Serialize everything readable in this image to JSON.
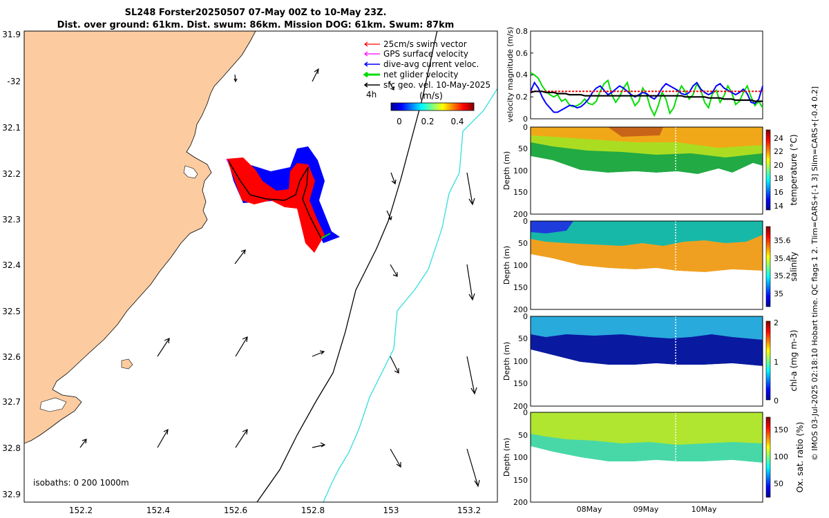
{
  "title": {
    "line1": "SL248 Forster20250507 07-May 00Z to 10-May 23Z.",
    "line2": "Dist. over ground: 61km. Dist. swum: 86km. Mission DOG: 61km. Swum: 87km"
  },
  "map": {
    "land_color": "#FCCCA0",
    "lon_ticks": [
      "152.2",
      "152.4",
      "152.6",
      "152.8",
      "153",
      "153.2"
    ],
    "lat_ticks": [
      "31.9",
      "-32",
      "32.1",
      "32.2",
      "32.3",
      "32.4",
      "32.5",
      "32.6",
      "32.7",
      "32.8",
      "32.9"
    ],
    "legend": [
      {
        "label": "25cm/s swim vector",
        "color": "#FF0000"
      },
      {
        "label": "GPS surface velocity",
        "color": "#FF00FF"
      },
      {
        "label": "dive-avg current veloc.",
        "color": "#0000FF"
      },
      {
        "label": "net glider velocity",
        "color": "#00DD00"
      },
      {
        "label": "sfc geo. vel. 10-May-2025",
        "color": "#000000"
      }
    ],
    "legend_extra": "4h",
    "colorbar": {
      "unit": "(m/s)",
      "ticks": [
        "0",
        "0.2",
        "0.4"
      ]
    },
    "isobaths_label": "isobaths: 0   200  1000m",
    "isobath_200_color": "#000000",
    "isobath_1000_color": "#33DDDD"
  },
  "chart_data": [
    {
      "type": "line",
      "title": "",
      "ylabel": "velocity magnitude (m/s)",
      "ylim": [
        0,
        0.8
      ],
      "yticks": [
        "0",
        "0.2",
        "0.4",
        "0.6",
        "0.8"
      ],
      "series": [
        {
          "name": "net glider velocity",
          "color": "#00DD00",
          "values": [
            0.42,
            0.4,
            0.37,
            0.3,
            0.25,
            0.22,
            0.2,
            0.22,
            0.16,
            0.18,
            0.13,
            0.11,
            0.12,
            0.14,
            0.18,
            0.14,
            0.13,
            0.16,
            0.25,
            0.32,
            0.35,
            0.22,
            0.15,
            0.2,
            0.28,
            0.33,
            0.2,
            0.12,
            0.16,
            0.28,
            0.22,
            0.1,
            0.03,
            0.12,
            0.24,
            0.18,
            0.05,
            0.1,
            0.22,
            0.3,
            0.25,
            0.18,
            0.22,
            0.32,
            0.26,
            0.15,
            0.1,
            0.23,
            0.26,
            0.15,
            0.21,
            0.3,
            0.24,
            0.13,
            0.16,
            0.24,
            0.3,
            0.2,
            0.12,
            0.16,
            0.1
          ]
        },
        {
          "name": "dive-avg current veloc.",
          "color": "#0000FF",
          "values": [
            0.25,
            0.33,
            0.28,
            0.2,
            0.14,
            0.1,
            0.06,
            0.06,
            0.08,
            0.1,
            0.12,
            0.12,
            0.1,
            0.11,
            0.14,
            0.18,
            0.24,
            0.28,
            0.3,
            0.26,
            0.22,
            0.24,
            0.27,
            0.3,
            0.28,
            0.25,
            0.22,
            0.2,
            0.22,
            0.24,
            0.23,
            0.2,
            0.18,
            0.22,
            0.28,
            0.32,
            0.3,
            0.28,
            0.26,
            0.23,
            0.22,
            0.24,
            0.3,
            0.33,
            0.27,
            0.24,
            0.22,
            0.24,
            0.3,
            0.32,
            0.28,
            0.26,
            0.24,
            0.22,
            0.24,
            0.27,
            0.23,
            0.15,
            0.14,
            0.18,
            0.3
          ]
        },
        {
          "name": "25cm/s swim vector",
          "color": "#FF0000",
          "dashed": true,
          "values": [
            0.25,
            0.25,
            0.25,
            0.25,
            0.25,
            0.25,
            0.25,
            0.25,
            0.25,
            0.25,
            0.25,
            0.25,
            0.25,
            0.25,
            0.25,
            0.25,
            0.25,
            0.25,
            0.25,
            0.25,
            0.25,
            0.25,
            0.25,
            0.25,
            0.25,
            0.25,
            0.25,
            0.25,
            0.25,
            0.25,
            0.25,
            0.25,
            0.25,
            0.25,
            0.25,
            0.25,
            0.25,
            0.25,
            0.25,
            0.25,
            0.25,
            0.25,
            0.25,
            0.25,
            0.25,
            0.25,
            0.25,
            0.25,
            0.25,
            0.25,
            0.25,
            0.25,
            0.25,
            0.25,
            0.25,
            0.25,
            0.25,
            0.25,
            0.25,
            0.25,
            0.25
          ]
        },
        {
          "name": "sfc geo. vel.",
          "color": "#000000",
          "values": [
            0.24,
            0.25,
            0.25,
            0.25,
            0.24,
            0.24,
            0.24,
            0.23,
            0.23,
            0.23,
            0.22,
            0.22,
            0.22,
            0.22,
            0.21,
            0.21,
            0.21,
            0.21,
            0.21,
            0.21,
            0.21,
            0.21,
            0.21,
            0.21,
            0.21,
            0.21,
            0.21,
            0.21,
            0.21,
            0.21,
            0.21,
            0.21,
            0.21,
            0.21,
            0.21,
            0.21,
            0.21,
            0.21,
            0.21,
            0.21,
            0.2,
            0.2,
            0.2,
            0.2,
            0.2,
            0.2,
            0.19,
            0.19,
            0.19,
            0.19,
            0.18,
            0.18,
            0.18,
            0.17,
            0.17,
            0.17,
            0.17,
            0.17,
            0.16,
            0.16,
            0.16
          ]
        }
      ]
    },
    {
      "type": "heatmap",
      "variable": "temperature",
      "ylabel": "Depth (m)",
      "clabel": "temperature (°C)",
      "ylim": [
        0,
        200
      ],
      "yticks": [
        "0",
        "50",
        "100",
        "150",
        "200"
      ],
      "crange": [
        13,
        25
      ],
      "cticks": [
        "24",
        "22",
        "20",
        "18",
        "16",
        "14"
      ]
    },
    {
      "type": "heatmap",
      "variable": "salinity",
      "ylabel": "Depth (m)",
      "clabel": "salinity",
      "ylim": [
        0,
        200
      ],
      "yticks": [
        "0",
        "50",
        "100",
        "150",
        "200"
      ],
      "crange": [
        34.85,
        35.75
      ],
      "cticks": [
        "35.6",
        "35.4",
        "35.2",
        "35"
      ]
    },
    {
      "type": "heatmap",
      "variable": "chl-a",
      "ylabel": "Depth (m)",
      "clabel": "chl-a (mg m-3)",
      "ylim": [
        0,
        200
      ],
      "yticks": [
        "0",
        "50",
        "100",
        "150",
        "200"
      ],
      "crange": [
        0,
        2
      ],
      "cticks": [
        "2",
        "1",
        "0"
      ]
    },
    {
      "type": "heatmap",
      "variable": "oxygen",
      "ylabel": "Depth (m)",
      "clabel": "Ox. sat. ratio (%)",
      "ylim": [
        0,
        200
      ],
      "yticks": [
        "0",
        "50",
        "100",
        "150",
        "200"
      ],
      "crange": [
        25,
        175
      ],
      "cticks": [
        "150",
        "100",
        "50"
      ],
      "xticks": [
        "08May",
        "09May",
        "10May"
      ]
    }
  ],
  "side_note": "© IMOS 03-Jul-2025 02:18:10 Hobart time. QC flags 1  2. Tlim=CARS+[-1 3] Slim=CARS+[-0.4 0.2]"
}
